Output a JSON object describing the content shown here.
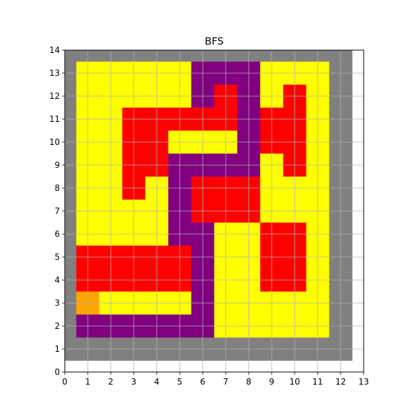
{
  "chart_data": {
    "type": "heatmap",
    "title": "BFS",
    "xlabel": "",
    "ylabel": "",
    "xlim": [
      0,
      13
    ],
    "ylim": [
      0,
      14
    ],
    "x_ticks": [
      "0",
      "1",
      "2",
      "3",
      "4",
      "5",
      "6",
      "7",
      "8",
      "9",
      "10",
      "11",
      "12",
      "13"
    ],
    "y_ticks": [
      "0",
      "1",
      "2",
      "3",
      "4",
      "5",
      "6",
      "7",
      "8",
      "9",
      "10",
      "11",
      "12",
      "13",
      "14"
    ],
    "grid": true,
    "legend": "none",
    "colors": {
      "W": "#808080",
      "Y": "#ffff00",
      "R": "#ff0000",
      "P": "#800080",
      "O": "#ffa500",
      "grid": "#b0b0b0"
    },
    "grid_rows_top_to_bottom": [
      "WWWWWWWWWWWWW",
      "WYYYYYPPPYYYW",
      "WYYYYYPRPYRYW",
      "WYYRRRRRPRRYW",
      "WYYRRYYYPRRYW",
      "WYYRRPPPPYRYW",
      "WYYRYPRRRYYYW",
      "WYYYYPRRRYYYW",
      "WYYYYPPYYRRYW",
      "WRRRRRPYYRRYW",
      "WRRRRRPYYRRYW",
      "WOYYYYPYYYYYW",
      "WPPPPPPYYYYYW",
      "WWWWWWWWWWWWW"
    ]
  }
}
